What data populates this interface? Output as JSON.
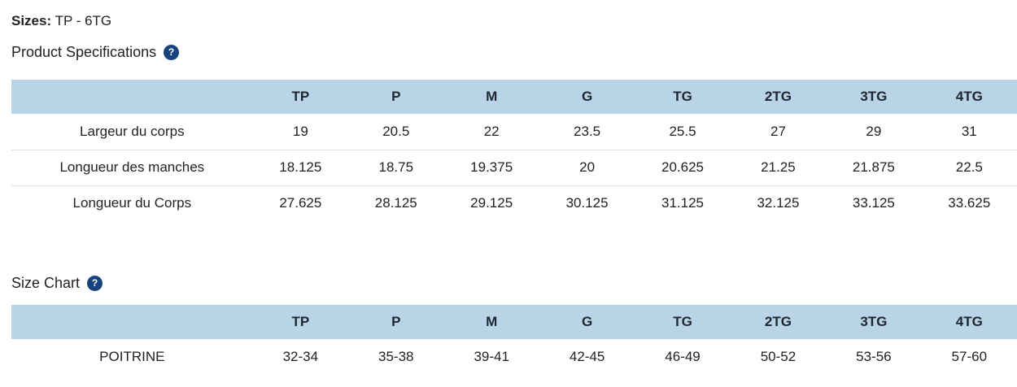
{
  "colors": {
    "table_header_bg": "#b9d3e7",
    "help_icon_bg": "#16437d",
    "text": "#222222",
    "row_border": "#e2e2e2"
  },
  "sizes_line": {
    "label": "Sizes:",
    "value": "TP - 6TG"
  },
  "sections": [
    {
      "title": "Product Specifications",
      "help_icon": "question-mark-icon",
      "help_glyph": "?",
      "table": {
        "size_columns": [
          "TP",
          "P",
          "M",
          "G",
          "TG",
          "2TG",
          "3TG",
          "4TG"
        ],
        "rows": [
          {
            "label": "Largeur du corps",
            "values": [
              "19",
              "20.5",
              "22",
              "23.5",
              "25.5",
              "27",
              "29",
              "31"
            ]
          },
          {
            "label": "Longueur des manches",
            "values": [
              "18.125",
              "18.75",
              "19.375",
              "20",
              "20.625",
              "21.25",
              "21.875",
              "22.5"
            ]
          },
          {
            "label": "Longueur du Corps",
            "values": [
              "27.625",
              "28.125",
              "29.125",
              "30.125",
              "31.125",
              "32.125",
              "33.125",
              "33.625"
            ]
          }
        ]
      }
    },
    {
      "title": "Size Chart",
      "help_icon": "question-mark-icon",
      "help_glyph": "?",
      "table": {
        "size_columns": [
          "TP",
          "P",
          "M",
          "G",
          "TG",
          "2TG",
          "3TG",
          "4TG"
        ],
        "rows": [
          {
            "label": "POITRINE",
            "values": [
              "32-34",
              "35-38",
              "39-41",
              "42-45",
              "46-49",
              "50-52",
              "53-56",
              "57-60"
            ]
          }
        ]
      }
    }
  ]
}
